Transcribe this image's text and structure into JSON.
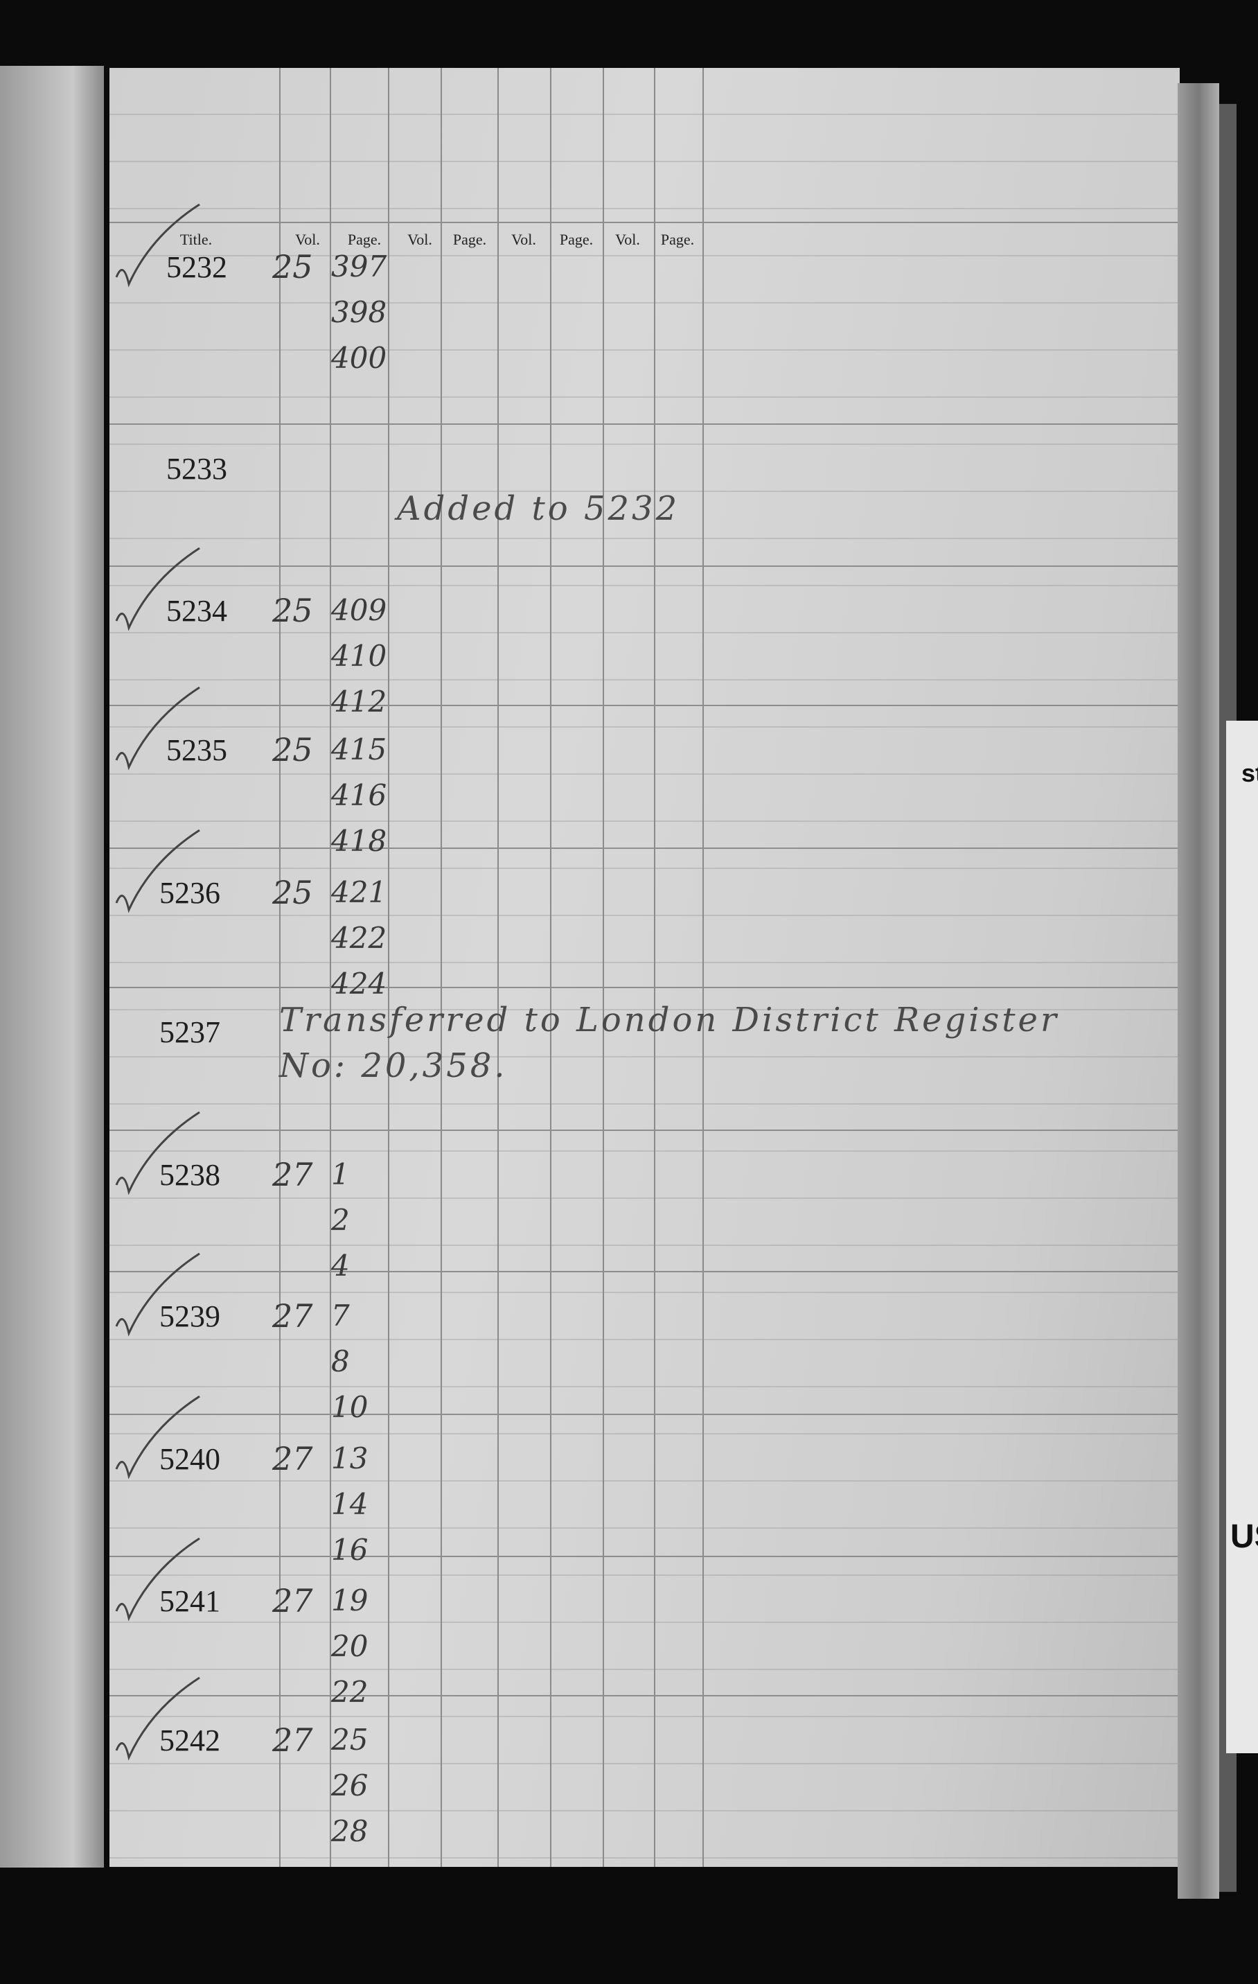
{
  "header": {
    "columns": [
      "Title.",
      "Vol.",
      "Page.",
      "Vol.",
      "Page.",
      "Vol.",
      "Page.",
      "Vol.",
      "Page."
    ]
  },
  "entries": [
    {
      "number": "5232",
      "vol": "25",
      "pages": [
        "397",
        "398",
        "400"
      ]
    },
    {
      "number": "5233",
      "note": [
        "Added to 5232"
      ]
    },
    {
      "number": "5234",
      "vol": "25",
      "pages": [
        "409",
        "410",
        "412"
      ]
    },
    {
      "number": "5235",
      "vol": "25",
      "pages": [
        "415",
        "416",
        "418"
      ]
    },
    {
      "number": "5236",
      "vol": "25",
      "pages": [
        "421",
        "422",
        "424"
      ]
    },
    {
      "number": "5237",
      "note": [
        "Transferred to London District Register",
        "No: 20,358."
      ]
    },
    {
      "number": "5238",
      "vol": "27",
      "pages": [
        "1",
        "2",
        "4"
      ]
    },
    {
      "number": "5239",
      "vol": "27",
      "pages": [
        "7",
        "8",
        "10"
      ]
    },
    {
      "number": "5240",
      "vol": "27",
      "pages": [
        "13",
        "14",
        "16"
      ]
    },
    {
      "number": "5241",
      "vol": "27",
      "pages": [
        "19",
        "20",
        "22"
      ]
    },
    {
      "number": "5242",
      "vol": "27",
      "pages": [
        "25",
        "26",
        "28"
      ]
    }
  ],
  "edge_fragments": [
    "st",
    "US"
  ]
}
